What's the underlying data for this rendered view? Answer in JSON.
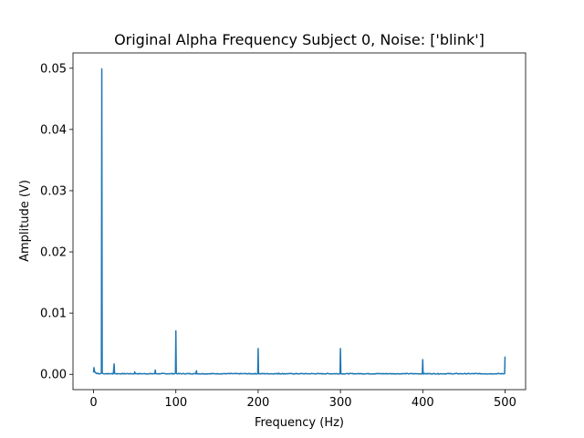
{
  "chart_data": {
    "type": "line",
    "title": "Original Alpha Frequency Subject 0, Noise: ['blink']",
    "xlabel": "Frequency (Hz)",
    "ylabel": "Amplitude (V)",
    "xlim": [
      -25,
      525
    ],
    "ylim": [
      -0.0025,
      0.0525
    ],
    "x_ticks": [
      0,
      100,
      200,
      300,
      400,
      500
    ],
    "x_tick_labels": [
      "0",
      "100",
      "200",
      "300",
      "400",
      "500"
    ],
    "y_ticks": [
      0.0,
      0.01,
      0.02,
      0.03,
      0.04,
      0.05
    ],
    "y_tick_labels": [
      "0.00",
      "0.01",
      "0.02",
      "0.03",
      "0.04",
      "0.05"
    ],
    "grid": false,
    "line_color": "#1f77b4",
    "baseline": 0.0001,
    "series": [
      {
        "x": [
          0,
          0.5,
          1,
          1.5,
          2,
          3,
          5,
          8,
          9.5,
          10,
          10.5,
          12,
          15,
          20,
          24,
          25,
          25.5,
          26,
          30,
          40,
          49.5,
          50,
          50.5,
          60,
          74.5,
          75,
          75.5,
          90,
          99.5,
          100,
          100.5,
          110,
          124.5,
          125,
          125.5,
          150,
          175,
          199.5,
          200,
          200.5,
          225,
          250,
          275,
          299.5,
          300,
          300.5,
          325,
          350,
          375,
          399.5,
          400,
          400.5,
          425,
          450,
          475,
          499.5,
          500
        ],
        "y": [
          0.0003,
          0.0011,
          0.0006,
          0.0004,
          0.0003,
          0.0002,
          0.0002,
          0.0001,
          0.0002,
          0.0499,
          0.0002,
          0.0001,
          0.0001,
          0.0001,
          0.0001,
          0.0017,
          0.0002,
          0.0001,
          0.0001,
          0.0001,
          0.0001,
          0.0004,
          0.0001,
          0.0001,
          0.0001,
          0.0007,
          0.0001,
          0.0001,
          0.0002,
          0.0071,
          0.0002,
          0.0001,
          0.0001,
          0.0006,
          0.0001,
          0.0001,
          0.0001,
          0.0001,
          0.0042,
          0.0001,
          0.0002,
          0.0001,
          0.0001,
          0.0001,
          0.0042,
          0.0001,
          0.0001,
          0.0001,
          0.0001,
          0.0001,
          0.0024,
          0.0001,
          0.0001,
          0.0001,
          0.0001,
          0.0001,
          0.0029
        ]
      }
    ]
  }
}
